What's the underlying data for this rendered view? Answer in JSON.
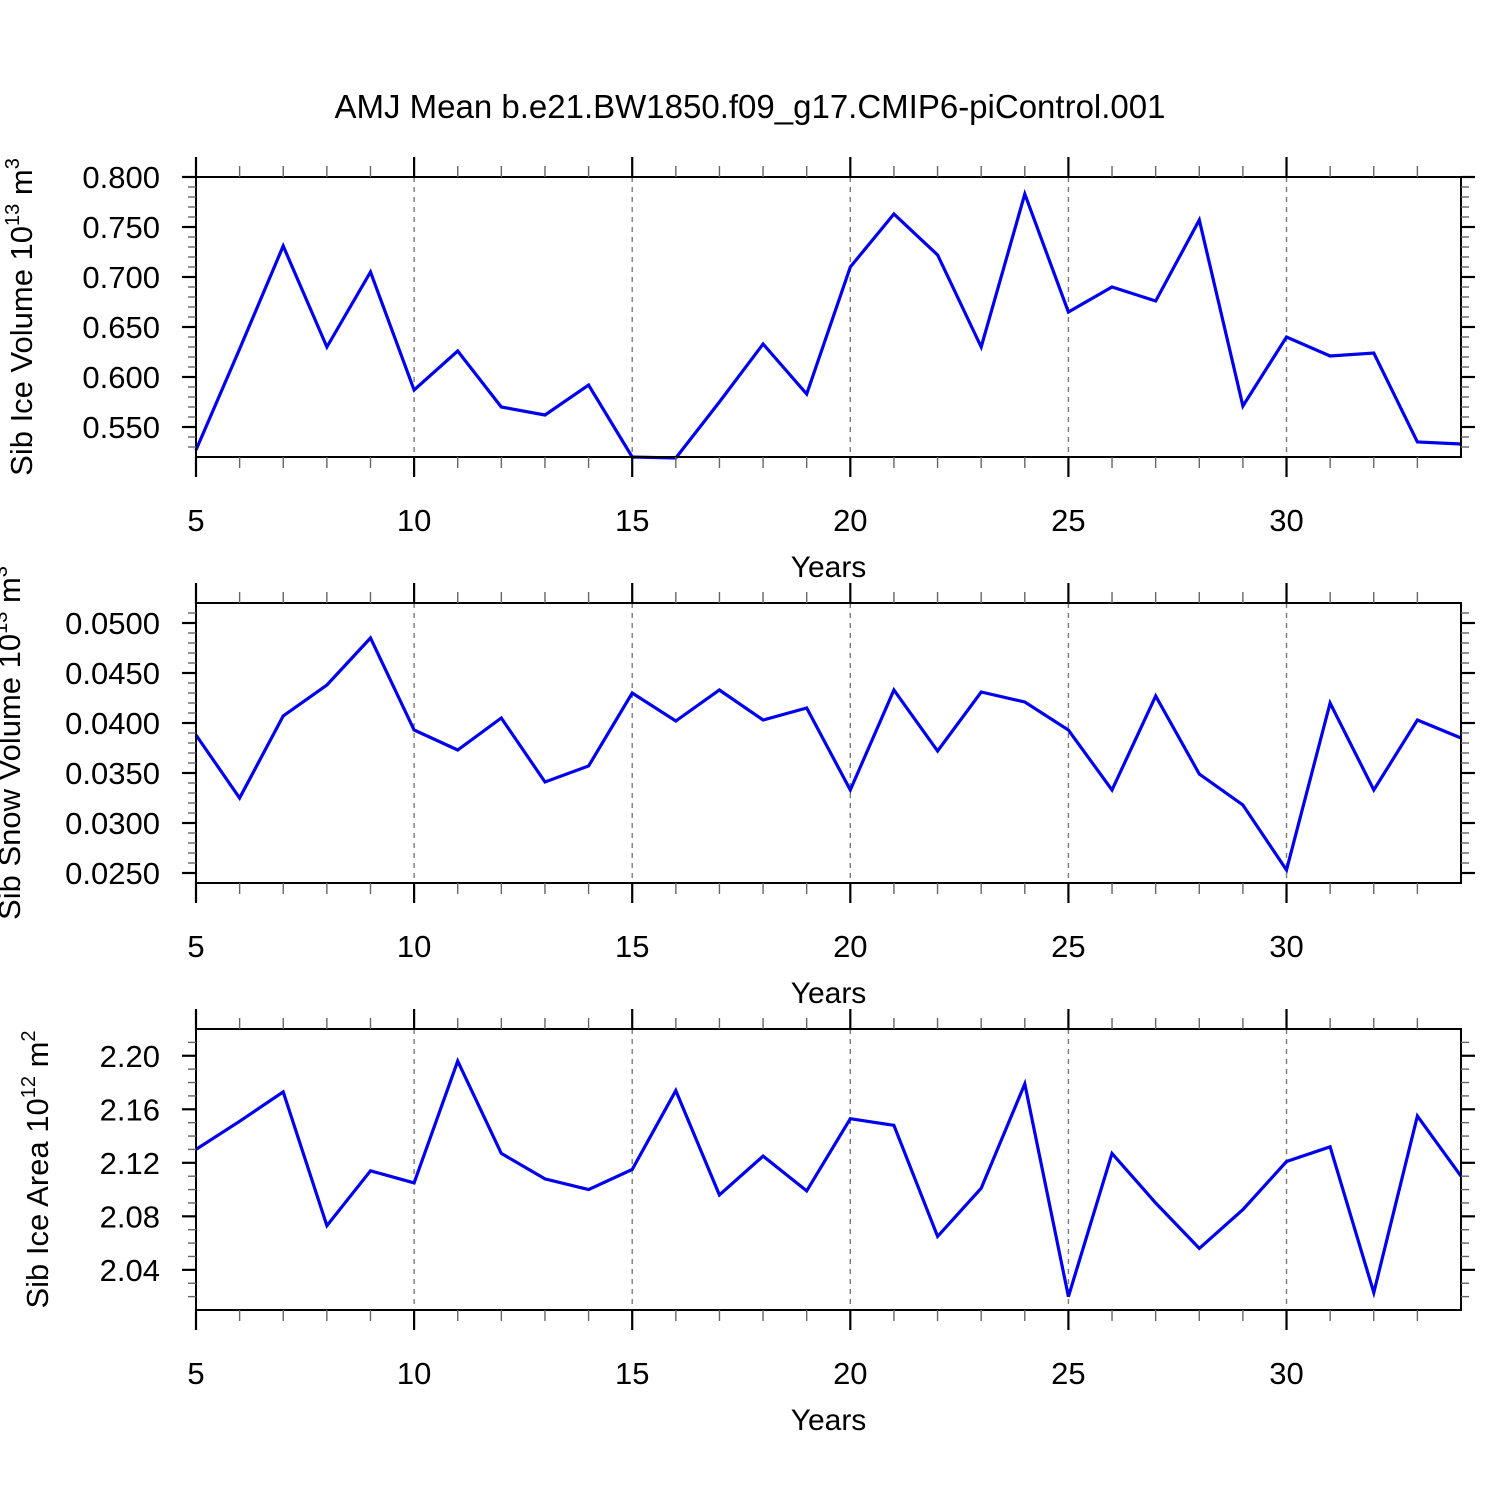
{
  "title": "AMJ Mean b.e21.BW1850.f09_g17.CMIP6-piControl.001",
  "colors": {
    "line": "#0000EE",
    "axis": "#000000",
    "grid": "#7a7a7a",
    "minor_tick": "#666666",
    "background": "#ffffff"
  },
  "x_axis": {
    "label": "Years",
    "min": 5,
    "max": 34,
    "major_ticks": [
      5,
      10,
      15,
      20,
      25,
      30
    ],
    "minor_step": 1,
    "grid_years": [
      10,
      15,
      20,
      25,
      30
    ]
  },
  "years": [
    5,
    6,
    7,
    8,
    9,
    10,
    11,
    12,
    13,
    14,
    15,
    16,
    17,
    18,
    19,
    20,
    21,
    22,
    23,
    24,
    25,
    26,
    27,
    28,
    29,
    30,
    31,
    32,
    33,
    34
  ],
  "chart_data": [
    {
      "type": "line",
      "name": "sib-ice-volume",
      "ylabel_parts": {
        "base": "Sib Ice Volume 10",
        "exp": "13",
        "unit": " m",
        "unit_exp": "3"
      },
      "ylim": [
        0.52,
        0.8
      ],
      "y_tick_values": [
        0.55,
        0.6,
        0.65,
        0.7,
        0.75,
        0.8
      ],
      "y_tick_labels": [
        "0.550",
        "0.600",
        "0.650",
        "0.700",
        "0.750",
        "0.800"
      ],
      "y_minor_step": 0.01,
      "xlabel": "Years",
      "values": [
        0.527,
        0.628,
        0.731,
        0.63,
        0.705,
        0.587,
        0.626,
        0.57,
        0.562,
        0.592,
        0.52,
        0.519,
        0.575,
        0.633,
        0.583,
        0.71,
        0.763,
        0.722,
        0.63,
        0.783,
        0.665,
        0.69,
        0.676,
        0.757,
        0.571,
        0.64,
        0.621,
        0.624,
        0.535,
        0.533
      ]
    },
    {
      "type": "line",
      "name": "sib-snow-volume",
      "ylabel_parts": {
        "base": "Sib Snow Volume 10",
        "exp": "13",
        "unit": " m",
        "unit_exp": "3"
      },
      "ylim": [
        0.024,
        0.052
      ],
      "y_tick_values": [
        0.025,
        0.03,
        0.035,
        0.04,
        0.045,
        0.05
      ],
      "y_tick_labels": [
        "0.0250",
        "0.0300",
        "0.0350",
        "0.0400",
        "0.0450",
        "0.0500"
      ],
      "y_minor_step": 0.001,
      "xlabel": "Years",
      "values": [
        0.0388,
        0.0325,
        0.0407,
        0.0438,
        0.0485,
        0.0393,
        0.0373,
        0.0405,
        0.0341,
        0.0357,
        0.043,
        0.0402,
        0.0433,
        0.0403,
        0.0415,
        0.0333,
        0.0433,
        0.0372,
        0.0431,
        0.0421,
        0.0393,
        0.0333,
        0.0427,
        0.0349,
        0.0318,
        0.0253,
        0.042,
        0.0333,
        0.0403,
        0.0385
      ]
    },
    {
      "type": "line",
      "name": "sib-ice-area",
      "ylabel_parts": {
        "base": "Sib Ice Area 10",
        "exp": "12",
        "unit": " m",
        "unit_exp": "2"
      },
      "ylim": [
        2.01,
        2.22
      ],
      "y_tick_values": [
        2.04,
        2.08,
        2.12,
        2.16,
        2.2
      ],
      "y_tick_labels": [
        "2.04",
        "2.08",
        "2.12",
        "2.16",
        "2.20"
      ],
      "y_minor_step": 0.01,
      "xlabel": "Years",
      "values": [
        2.13,
        2.151,
        2.173,
        2.073,
        2.114,
        2.105,
        2.196,
        2.127,
        2.108,
        2.1,
        2.115,
        2.174,
        2.096,
        2.125,
        2.099,
        2.153,
        2.148,
        2.065,
        2.101,
        2.179,
        2.02,
        2.127,
        2.09,
        2.056,
        2.085,
        2.121,
        2.132,
        2.023,
        2.155,
        2.11
      ]
    }
  ]
}
